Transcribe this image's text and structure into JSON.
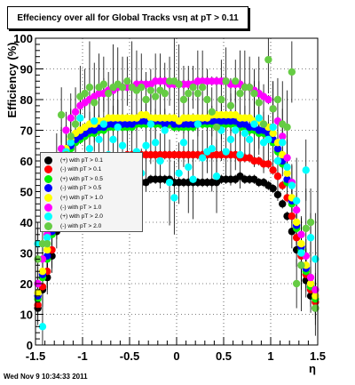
{
  "title": "Effeciency over all for Global Tracks vsη at pT > 0.11",
  "footer_date": "Wed Nov  9 10:34:33 2011",
  "chart_data": {
    "type": "scatter",
    "title": "Effeciency over all for Global Tracks vsη at pT > 0.11",
    "xlabel": "η",
    "ylabel": "Efficiency (%)",
    "xlim": [
      -1.5,
      1.5
    ],
    "ylim": [
      0,
      100
    ],
    "x_ticks": [
      "-1.5",
      "-1",
      "-0.5",
      "0",
      "0.5",
      "1",
      "1.5"
    ],
    "y_ticks": [
      "0",
      "10",
      "20",
      "30",
      "40",
      "50",
      "60",
      "70",
      "80",
      "90",
      "100"
    ],
    "grid": true,
    "legend_position": "left",
    "x": [
      -1.475,
      -1.425,
      -1.375,
      -1.325,
      -1.275,
      -1.225,
      -1.175,
      -1.125,
      -1.075,
      -1.025,
      -0.975,
      -0.925,
      -0.875,
      -0.825,
      -0.775,
      -0.725,
      -0.675,
      -0.625,
      -0.575,
      -0.525,
      -0.475,
      -0.425,
      -0.375,
      -0.325,
      -0.275,
      -0.225,
      -0.175,
      -0.125,
      -0.075,
      -0.025,
      0.025,
      0.075,
      0.125,
      0.175,
      0.225,
      0.275,
      0.325,
      0.375,
      0.425,
      0.475,
      0.525,
      0.575,
      0.625,
      0.675,
      0.725,
      0.775,
      0.825,
      0.875,
      0.925,
      0.975,
      1.025,
      1.075,
      1.125,
      1.175,
      1.225,
      1.275,
      1.325,
      1.375,
      1.425,
      1.475
    ],
    "series": [
      {
        "name": "(+) with pT > 0.1",
        "color": "#000000",
        "values": [
          12,
          18,
          22,
          29,
          37,
          43,
          47,
          49,
          50,
          51,
          51,
          52,
          52,
          52,
          53,
          53,
          53,
          53,
          53,
          53,
          53,
          54,
          53,
          53,
          54,
          54,
          54,
          54,
          54,
          53,
          53,
          53,
          53,
          53,
          53,
          53,
          53,
          53,
          53,
          54,
          54,
          54,
          54,
          55,
          54,
          54,
          54,
          53,
          53,
          52,
          51,
          49,
          46,
          42,
          37,
          31,
          26,
          21,
          16,
          12
        ]
      },
      {
        "name": "(-) with pT > 0.1",
        "color": "#ff0000",
        "values": [
          13,
          19,
          24,
          31,
          40,
          47,
          52,
          55,
          57,
          58,
          59,
          60,
          60,
          60,
          61,
          61,
          61,
          61,
          61,
          62,
          62,
          62,
          62,
          62,
          62,
          62,
          62,
          62,
          62,
          62,
          62,
          62,
          62,
          62,
          62,
          62,
          62,
          62,
          62,
          62,
          62,
          62,
          62,
          61,
          61,
          61,
          60,
          60,
          59,
          59,
          57,
          55,
          52,
          48,
          42,
          35,
          29,
          23,
          18,
          14
        ]
      },
      {
        "name": "(+) with pT > 0.5",
        "color": "#00ee00",
        "values": [
          15,
          22,
          28,
          36,
          46,
          55,
          61,
          64,
          66,
          67,
          68,
          69,
          69,
          70,
          70,
          71,
          71,
          71,
          71,
          71,
          71,
          72,
          72,
          72,
          72,
          72,
          72,
          71,
          72,
          71,
          71,
          71,
          71,
          71,
          72,
          72,
          72,
          72,
          72,
          72,
          72,
          72,
          72,
          71,
          71,
          70,
          70,
          69,
          69,
          68,
          66,
          63,
          59,
          53,
          46,
          38,
          31,
          24,
          19,
          15
        ]
      },
      {
        "name": "(-) with pT > 0.5",
        "color": "#0000ff",
        "values": [
          16,
          23,
          29,
          37,
          47,
          56,
          62,
          65,
          67,
          68,
          69,
          70,
          70,
          71,
          71,
          72,
          72,
          72,
          72,
          72,
          72,
          73,
          73,
          73,
          73,
          73,
          73,
          72,
          73,
          72,
          72,
          72,
          72,
          72,
          73,
          73,
          73,
          73,
          73,
          73,
          73,
          73,
          73,
          72,
          72,
          71,
          71,
          70,
          70,
          69,
          67,
          64,
          60,
          54,
          47,
          39,
          32,
          25,
          20,
          16
        ]
      },
      {
        "name": "(+) with pT > 1.0",
        "color": "#ffff00",
        "values": [
          17,
          24,
          31,
          39,
          49,
          58,
          64,
          67,
          69,
          70,
          71,
          72,
          72,
          73,
          73,
          74,
          74,
          74,
          74,
          74,
          74,
          74,
          75,
          75,
          74,
          74,
          74,
          74,
          74,
          74,
          73,
          74,
          74,
          74,
          74,
          74,
          74,
          75,
          75,
          75,
          75,
          75,
          75,
          74,
          74,
          74,
          73,
          73,
          72,
          71,
          69,
          66,
          62,
          56,
          48,
          40,
          33,
          26,
          20,
          16
        ]
      },
      {
        "name": "(-) with pT > 1.0",
        "color": "#ff00ff",
        "values": [
          20,
          28,
          36,
          45,
          55,
          64,
          70,
          74,
          76,
          78,
          79,
          80,
          81,
          82,
          82,
          83,
          83,
          84,
          84,
          84,
          84,
          85,
          85,
          85,
          85,
          86,
          86,
          86,
          85,
          85,
          85,
          85,
          85,
          85,
          86,
          86,
          86,
          86,
          86,
          86,
          86,
          85,
          85,
          85,
          84,
          84,
          83,
          82,
          81,
          80,
          77,
          73,
          68,
          61,
          53,
          44,
          36,
          29,
          22,
          18
        ]
      },
      {
        "name": "(+) with pT > 2.0",
        "color": "#00ffff",
        "values": [
          33,
          6,
          35,
          40,
          52,
          56,
          63,
          66,
          61,
          74,
          57,
          64,
          73,
          67,
          72,
          62,
          67,
          71,
          65,
          60,
          58,
          63,
          56,
          65,
          72,
          66,
          60,
          70,
          53,
          48,
          56,
          66,
          58,
          54,
          72,
          61,
          63,
          64,
          55,
          70,
          63,
          67,
          70,
          62,
          69,
          67,
          72,
          74,
          66,
          67,
          71,
          60,
          66,
          58,
          52,
          47,
          30,
          57,
          35,
          28
        ]
      },
      {
        "name": "(-) with pT > 2.0",
        "color": "#66cc44",
        "values": [
          28,
          33,
          33,
          38,
          58,
          75,
          62,
          68,
          72,
          81,
          82,
          84,
          79,
          84,
          85,
          82,
          84,
          85,
          84,
          86,
          84,
          83,
          84,
          80,
          83,
          81,
          83,
          82,
          86,
          86,
          85,
          80,
          82,
          84,
          82,
          84,
          80,
          76,
          71,
          80,
          86,
          78,
          86,
          82,
          84,
          84,
          82,
          79,
          72,
          93,
          77,
          80,
          72,
          71,
          89,
          20,
          26,
          38,
          40,
          12
        ]
      }
    ]
  }
}
